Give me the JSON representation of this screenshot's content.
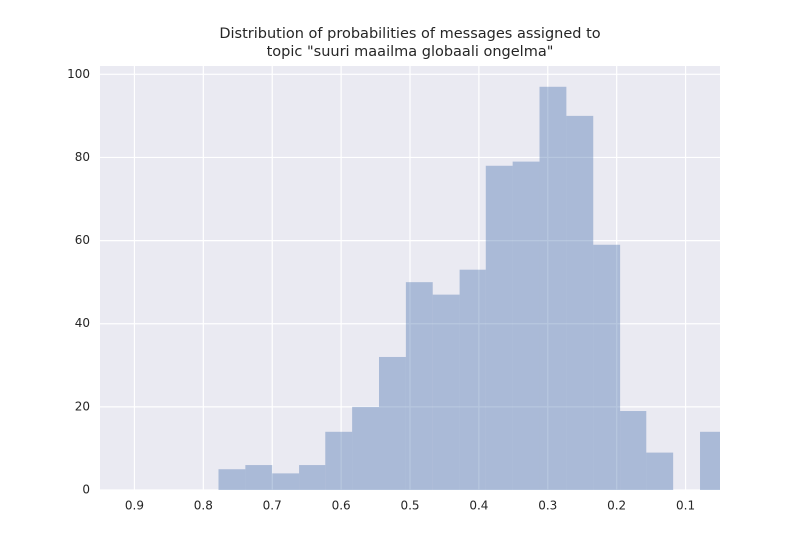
{
  "chart_data": {
    "type": "histogram",
    "title": [
      "Distribution of probabilities of messages assigned to",
      "topic \"suuri maailma globaali ongelma\""
    ],
    "bins": [
      0.04,
      0.079,
      0.118,
      0.157,
      0.195,
      0.234,
      0.273,
      0.312,
      0.351,
      0.39,
      0.428,
      0.467,
      0.506,
      0.545,
      0.584,
      0.623,
      0.661,
      0.7,
      0.739,
      0.778
    ],
    "values": [
      14,
      0,
      9,
      19,
      59,
      90,
      97,
      79,
      78,
      53,
      47,
      50,
      32,
      20,
      14,
      6,
      4,
      6,
      5
    ],
    "color": "#4c72b0",
    "alpha": 0.4,
    "xlim": [
      0.95,
      0.05
    ],
    "xticks": [
      0.9,
      0.8,
      0.7,
      0.6,
      0.5,
      0.4,
      0.3,
      0.2,
      0.1
    ],
    "ylim": [
      0,
      102
    ],
    "yticks": [
      0,
      20,
      40,
      60,
      80,
      100
    ],
    "grid": true
  }
}
